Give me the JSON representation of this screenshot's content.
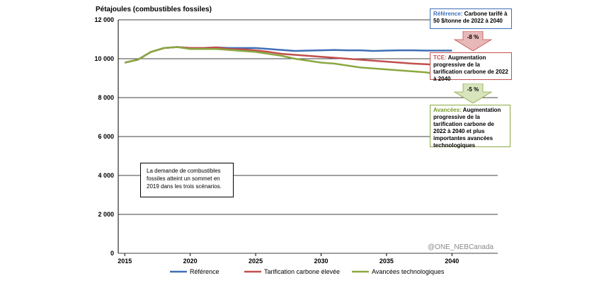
{
  "chart_data": {
    "type": "line",
    "y_label": "Pétajoules (combustibles fossiles)",
    "x": [
      2015,
      2016,
      2017,
      2018,
      2019,
      2020,
      2021,
      2022,
      2023,
      2024,
      2025,
      2026,
      2027,
      2028,
      2029,
      2030,
      2031,
      2032,
      2033,
      2034,
      2035,
      2036,
      2037,
      2038,
      2039,
      2040
    ],
    "xlim": [
      2014.5,
      2043.5
    ],
    "xticks": [
      2015,
      2020,
      2025,
      2030,
      2035,
      2040
    ],
    "ylim": [
      0,
      12000
    ],
    "yticks": [
      0,
      {
        "value": 2000,
        "label": "2 000"
      },
      {
        "value": 4000,
        "label": "4 000"
      },
      {
        "value": 6000,
        "label": "6 000"
      },
      {
        "value": 8000,
        "label": "8 000"
      },
      {
        "value": 10000,
        "label": "10 000"
      },
      {
        "value": 12000,
        "label": "12 000"
      }
    ],
    "grid": true,
    "series": [
      {
        "name": "Référence",
        "color": "#3f6eb5",
        "values": [
          9800,
          9950,
          10350,
          10550,
          10600,
          10550,
          10550,
          10580,
          10550,
          10550,
          10550,
          10500,
          10450,
          10400,
          10420,
          10430,
          10450,
          10430,
          10430,
          10400,
          10420,
          10430,
          10430,
          10420,
          10420,
          10420
        ]
      },
      {
        "name": "Tarification carbone élevée",
        "color": "#c0504d",
        "values": [
          9800,
          9950,
          10350,
          10550,
          10600,
          10550,
          10550,
          10580,
          10500,
          10480,
          10430,
          10350,
          10250,
          10200,
          10150,
          10100,
          10050,
          10000,
          9950,
          9900,
          9850,
          9800,
          9750,
          9720,
          9680,
          9600
        ]
      },
      {
        "name": "Avancées technologiques",
        "color": "#8aa83f",
        "values": [
          9800,
          9950,
          10350,
          10550,
          10600,
          10500,
          10500,
          10500,
          10450,
          10400,
          10350,
          10250,
          10150,
          10000,
          9900,
          9800,
          9750,
          9650,
          9550,
          9500,
          9450,
          9400,
          9350,
          9300,
          9200,
          9100
        ]
      }
    ],
    "annotations": [
      {
        "label": "Référence:",
        "text": "Carbone tarifé à 50 $/tonne de 2022 à 2040"
      },
      {
        "label": "TCE:",
        "text": "Augmentation progressive de la tarification carbone de 2022 à 2040"
      },
      {
        "label": "Avancées:",
        "text": "Augmentation progressive de la tarification carbone de 2022 à 2040 et plus importantes avancées technologiques"
      }
    ],
    "arrows": [
      "-8 %",
      "-5 %"
    ],
    "note": "La demande de combustibles fossiles atteint un sommet en 2019 dans les trois scénarios.",
    "watermark": "@ONE_NEBCanada"
  }
}
